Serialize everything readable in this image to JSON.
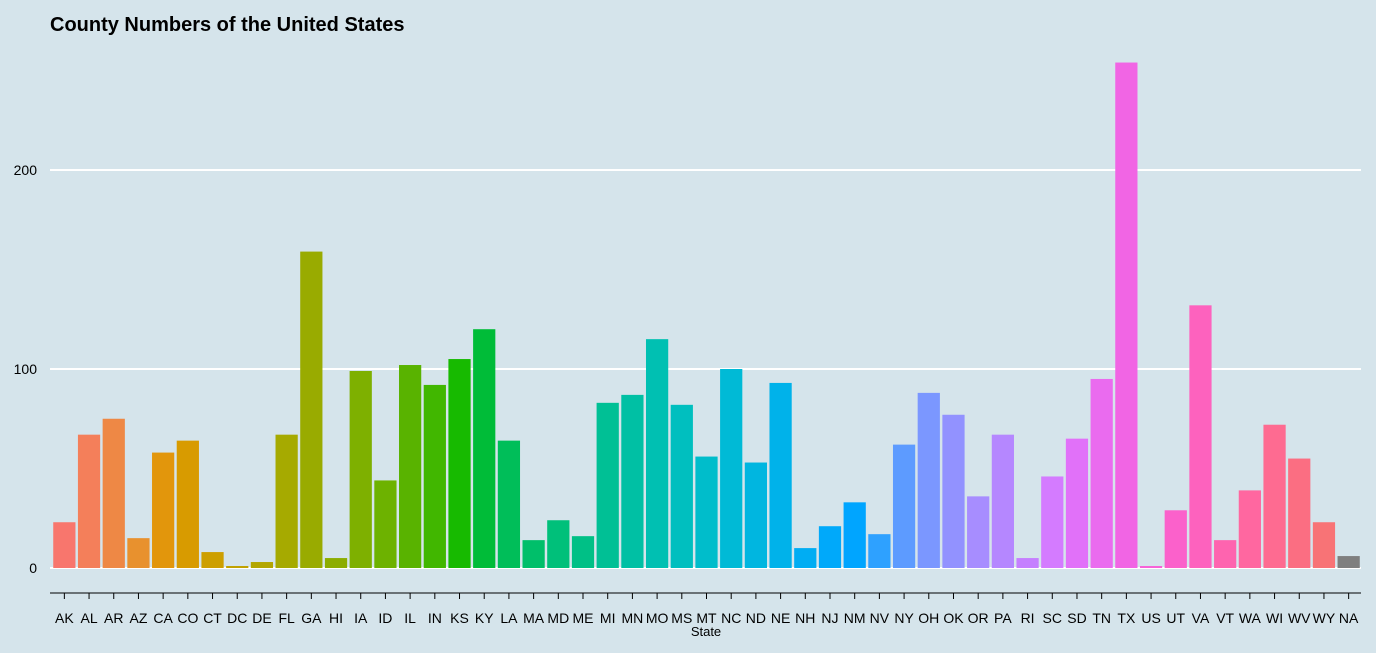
{
  "chart_data": {
    "type": "bar",
    "title": "County Numbers of the United States",
    "xlabel": "State",
    "ylabel": "",
    "ylim": [
      0,
      255
    ],
    "yticks": [
      0,
      100,
      200
    ],
    "grid": "horizontal",
    "categories": [
      "AK",
      "AL",
      "AR",
      "AZ",
      "CA",
      "CO",
      "CT",
      "DC",
      "DE",
      "FL",
      "GA",
      "HI",
      "IA",
      "ID",
      "IL",
      "IN",
      "KS",
      "KY",
      "LA",
      "MA",
      "MD",
      "ME",
      "MI",
      "MN",
      "MO",
      "MS",
      "MT",
      "NC",
      "ND",
      "NE",
      "NH",
      "NJ",
      "NM",
      "NV",
      "NY",
      "OH",
      "OK",
      "OR",
      "PA",
      "RI",
      "SC",
      "SD",
      "TN",
      "TX",
      "US",
      "UT",
      "VA",
      "VT",
      "WA",
      "WI",
      "WV",
      "WY",
      "NA"
    ],
    "values": [
      23,
      67,
      75,
      15,
      58,
      64,
      8,
      1,
      3,
      67,
      159,
      5,
      99,
      44,
      102,
      92,
      105,
      120,
      64,
      14,
      24,
      16,
      83,
      87,
      115,
      82,
      56,
      100,
      53,
      93,
      10,
      21,
      33,
      17,
      62,
      88,
      77,
      36,
      67,
      5,
      46,
      65,
      95,
      254,
      1,
      29,
      132,
      14,
      39,
      72,
      55,
      23,
      6
    ],
    "colors": [
      "#F8766D",
      "#F47F5A",
      "#EE8845",
      "#E8912E",
      "#E2960C",
      "#D89B00",
      "#CD9F00",
      "#C1A200",
      "#B3A600",
      "#A6AA00",
      "#99AB00",
      "#8CAD00",
      "#7EB000",
      "#6DB200",
      "#59B300",
      "#41B700",
      "#17BA00",
      "#00BC38",
      "#00BE59",
      "#00BF6A",
      "#00C07A",
      "#00C086",
      "#00C095",
      "#00C0A4",
      "#00C0B2",
      "#00BFBF",
      "#00BDCB",
      "#00BAD6",
      "#00B6E0",
      "#00B2EA",
      "#00ADF3",
      "#00A9FA",
      "#00A5FF",
      "#2EA1FF",
      "#5D9BFF",
      "#7B97FF",
      "#9292FF",
      "#A78DFF",
      "#B587FF",
      "#C57FFF",
      "#D47BFF",
      "#E171F9",
      "#EA6BEF",
      "#F165E4",
      "#F663D8",
      "#FB61CB",
      "#FD62BE",
      "#FE64AF",
      "#FF67A0",
      "#FE6B91",
      "#FB6E82",
      "#F87376",
      "#7F7F7F"
    ]
  }
}
